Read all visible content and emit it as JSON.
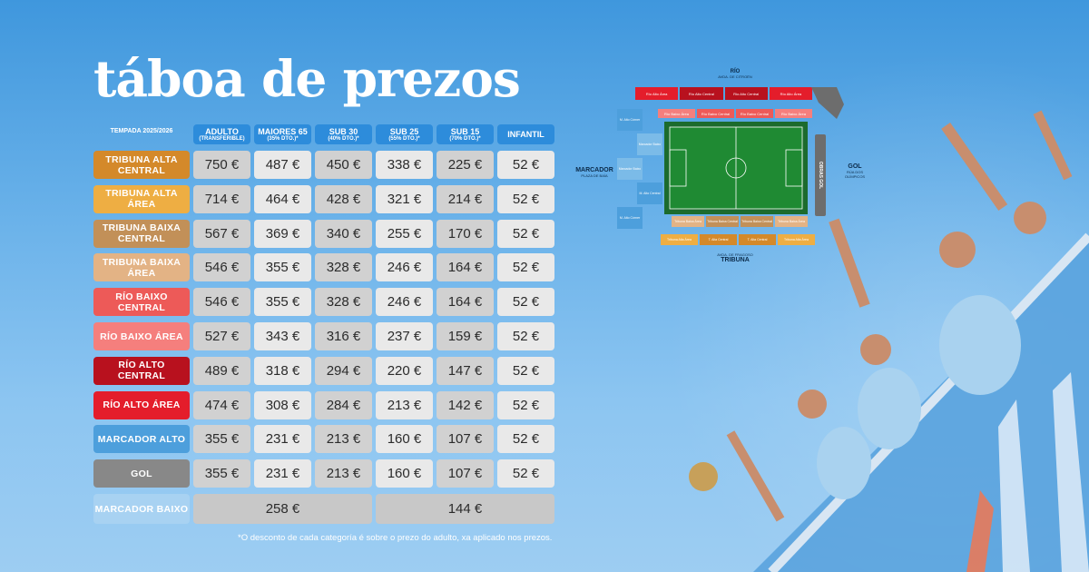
{
  "title": "táboa de prezos",
  "season_header": "TEMPADA 2025/2026",
  "columns": [
    {
      "label": "ADULTO",
      "sub": "(TRANSFERIBLE)"
    },
    {
      "label": "MAIORES 65",
      "sub": "(35% DTO.)*"
    },
    {
      "label": "SUB 30",
      "sub": "(40% DTO.)*"
    },
    {
      "label": "SUB 25",
      "sub": "(55% DTO.)*"
    },
    {
      "label": "SUB 15",
      "sub": "(70% DTO.)*"
    },
    {
      "label": "INFANTIL",
      "sub": ""
    }
  ],
  "rows": [
    {
      "category": "TRIBUNA ALTA CENTRAL",
      "color": "#d4892a",
      "prices": [
        "750 €",
        "487 €",
        "450 €",
        "338 €",
        "225 €",
        "52 €"
      ]
    },
    {
      "category": "TRIBUNA ALTA ÁREA",
      "color": "#eeae43",
      "prices": [
        "714 €",
        "464 €",
        "428 €",
        "321 €",
        "214 €",
        "52 €"
      ]
    },
    {
      "category": "TRIBUNA BAIXA CENTRAL",
      "color": "#c29058",
      "prices": [
        "567 €",
        "369 €",
        "340 €",
        "255 €",
        "170 €",
        "52 €"
      ]
    },
    {
      "category": "TRIBUNA BAIXA ÁREA",
      "color": "#e3b385",
      "prices": [
        "546 €",
        "355 €",
        "328 €",
        "246 €",
        "164 €",
        "52 €"
      ]
    },
    {
      "category": "RÍO BAIXO CENTRAL",
      "color": "#ed5a58",
      "prices": [
        "546 €",
        "355 €",
        "328 €",
        "246 €",
        "164 €",
        "52 €"
      ]
    },
    {
      "category": "RÍO BAIXO ÁREA",
      "color": "#f57f7d",
      "prices": [
        "527 €",
        "343 €",
        "316 €",
        "237 €",
        "159 €",
        "52 €"
      ]
    },
    {
      "category": "RÍO ALTO CENTRAL",
      "color": "#b8111e",
      "prices": [
        "489 €",
        "318 €",
        "294 €",
        "220 €",
        "147 €",
        "52 €"
      ]
    },
    {
      "category": "RÍO ALTO ÁREA",
      "color": "#e41d2b",
      "prices": [
        "474 €",
        "308 €",
        "284 €",
        "213 €",
        "142 €",
        "52 €"
      ]
    },
    {
      "category": "MARCADOR ALTO",
      "color": "#4d9fdc",
      "prices": [
        "355 €",
        "231 €",
        "213 €",
        "160 €",
        "107 €",
        "52 €"
      ]
    },
    {
      "category": "GOL",
      "color": "#888888",
      "prices": [
        "355 €",
        "231 €",
        "213 €",
        "160 €",
        "107 €",
        "52 €"
      ]
    }
  ],
  "last_row": {
    "category": "MARCADOR BAIXO",
    "color": "#a8d2f2",
    "price_a": "258 €",
    "price_b": "144 €"
  },
  "footnote": "*O desconto de cada categoría é sobre o prezo do adulto, xa aplicado nos prezos.",
  "stadium": {
    "rio": "RÍO",
    "rio_sub": "AVDA. DE CITROËN",
    "marcador": "MARCADOR",
    "marcador_sub": "PLAZA DE BAÍA",
    "gol": "GOL",
    "gol_sub": "RÚA DOS OLÍMPICOS",
    "tribuna": "TRIBUNA",
    "tribuna_sub": "AVDA. DE FRAGOSO",
    "obras": "OBRAS GOL",
    "sections_top": [
      "Río Alto Área",
      "Río Alto Central",
      "Río Alto Central",
      "Río Alto Área"
    ],
    "sections_top2": [
      "Río Baixo Área",
      "Río Baixo Central",
      "Río Baixo Central",
      "Río Baixo Área"
    ],
    "sections_left": [
      "M. Alto Córner",
      "Marcador Baixo",
      "Marcador Baixo",
      "M. Alto Central",
      "M. Alto Córner"
    ],
    "sections_bottom": [
      "Tribuna Baixa Área",
      "Tribuna Baixa Central",
      "Tribuna Baixa Central",
      "Tribuna Baixa Área"
    ],
    "sections_bottom2": [
      "Tribuna Alta Área",
      "T. Alta Central",
      "T. Alta Central",
      "Tribuna Alta Área"
    ]
  }
}
